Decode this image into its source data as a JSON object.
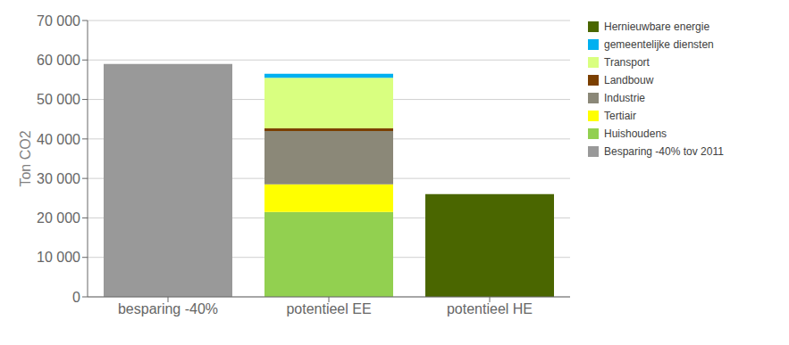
{
  "chart_data": {
    "type": "bar",
    "stacked": true,
    "categories": [
      "besparing -40%",
      "potentieel EE",
      "potentieel HE"
    ],
    "series": [
      {
        "name": "Besparing -40% tov 2011",
        "color": "#999999",
        "values": [
          59000,
          0,
          0
        ]
      },
      {
        "name": "Huishoudens",
        "color": "#92d050",
        "values": [
          0,
          21500,
          0
        ]
      },
      {
        "name": "Tertiair",
        "color": "#ffff00",
        "values": [
          0,
          7000,
          0
        ]
      },
      {
        "name": "Industrie",
        "color": "#8b8878",
        "values": [
          0,
          13500,
          0
        ]
      },
      {
        "name": "Landbouw",
        "color": "#7b3f00",
        "values": [
          0,
          700,
          0
        ]
      },
      {
        "name": "Transport",
        "color": "#d9ff80",
        "values": [
          0,
          12800,
          0
        ]
      },
      {
        "name": "gemeentelijke diensten",
        "color": "#00b0f0",
        "values": [
          0,
          1000,
          0
        ]
      },
      {
        "name": "Hernieuwbare energie",
        "color": "#4a6600",
        "values": [
          0,
          0,
          26000
        ]
      }
    ],
    "ylabel": "Ton CO2",
    "ylim": [
      0,
      70000
    ],
    "yticks": [
      0,
      {
        "value": 10000,
        "label": "10 000"
      },
      {
        "value": 20000,
        "label": "20 000"
      },
      {
        "value": 30000,
        "label": "30 000"
      },
      {
        "value": 40000,
        "label": "40 000"
      },
      {
        "value": 50000,
        "label": "50 000"
      },
      {
        "value": 60000,
        "label": "60 000"
      },
      {
        "value": 70000,
        "label": "70 000"
      }
    ],
    "grid": true,
    "legend": "right"
  }
}
